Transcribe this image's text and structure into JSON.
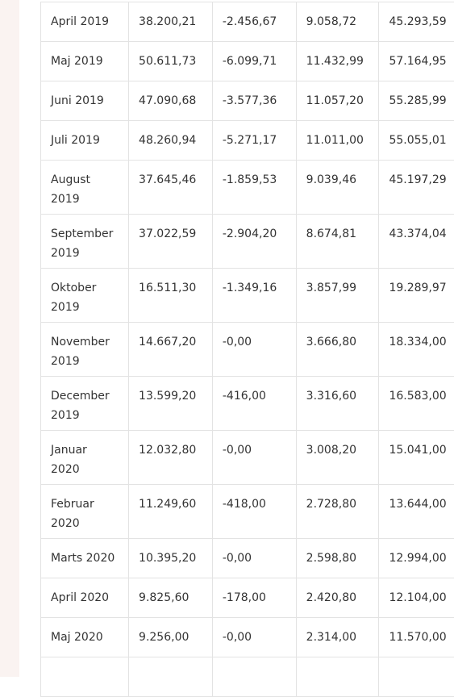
{
  "table": {
    "rows": [
      [
        "April 2019",
        "38.200,21",
        "-2.456,67",
        "9.058,72",
        "45.293,59"
      ],
      [
        "Maj 2019",
        "50.611,73",
        "-6.099,71",
        "11.432,99",
        "57.164,95"
      ],
      [
        "Juni 2019",
        "47.090,68",
        "-3.577,36",
        "11.057,20",
        "55.285,99"
      ],
      [
        "Juli 2019",
        "48.260,94",
        "-5.271,17",
        "11.011,00",
        "55.055,01"
      ],
      [
        "August 2019",
        "37.645,46",
        "-1.859,53",
        "9.039,46",
        "45.197,29"
      ],
      [
        "September 2019",
        "37.022,59",
        "-2.904,20",
        "8.674,81",
        "43.374,04"
      ],
      [
        "Oktober 2019",
        "16.511,30",
        "-1.349,16",
        "3.857,99",
        "19.289,97"
      ],
      [
        "November 2019",
        "14.667,20",
        "-0,00",
        "3.666,80",
        "18.334,00"
      ],
      [
        "December 2019",
        "13.599,20",
        "-416,00",
        "3.316,60",
        "16.583,00"
      ],
      [
        "Januar 2020",
        "12.032,80",
        "-0,00",
        "3.008,20",
        "15.041,00"
      ],
      [
        "Februar 2020",
        "11.249,60",
        "-418,00",
        "2.728,80",
        "13.644,00"
      ],
      [
        "Marts 2020",
        "10.395,20",
        "-0,00",
        "2.598,80",
        "12.994,00"
      ],
      [
        "April 2020",
        "9.825,60",
        "-178,00",
        "2.420,80",
        "12.104,00"
      ],
      [
        "Maj 2020",
        "9.256,00",
        "-0,00",
        "2.314,00",
        "11.570,00"
      ]
    ]
  }
}
